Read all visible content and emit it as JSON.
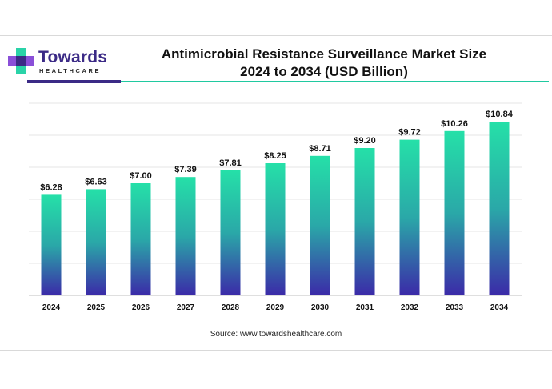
{
  "brand": {
    "name": "Towards",
    "subtitle": "HEALTHCARE",
    "colors": {
      "primary": "#3b2a86",
      "accent": "#20c9a0"
    }
  },
  "chart_data": {
    "type": "bar",
    "title": "Antimicrobial Resistance Surveillance Market Size",
    "subtitle": "2024 to 2034 (USD Billion)",
    "categories": [
      "2024",
      "2025",
      "2026",
      "2027",
      "2028",
      "2029",
      "2030",
      "2031",
      "2032",
      "2033",
      "2034"
    ],
    "values": [
      6.28,
      6.63,
      7.0,
      7.39,
      7.81,
      8.25,
      8.71,
      9.2,
      9.72,
      10.26,
      10.84
    ],
    "labels": [
      "$6.28",
      "$6.63",
      "$7.00",
      "$7.39",
      "$7.81",
      "$8.25",
      "$8.71",
      "$9.20",
      "$9.72",
      "$10.26",
      "$10.84"
    ],
    "xlabel": "",
    "ylabel": "",
    "ylim": [
      0,
      12
    ],
    "grid": true,
    "legend": "none",
    "colors": {
      "bar_top": "#25e0a8",
      "bar_mid": "#2aa8a8",
      "bar_bottom": "#3b2aa8"
    }
  },
  "source": "Source: www.towardshealthcare.com"
}
